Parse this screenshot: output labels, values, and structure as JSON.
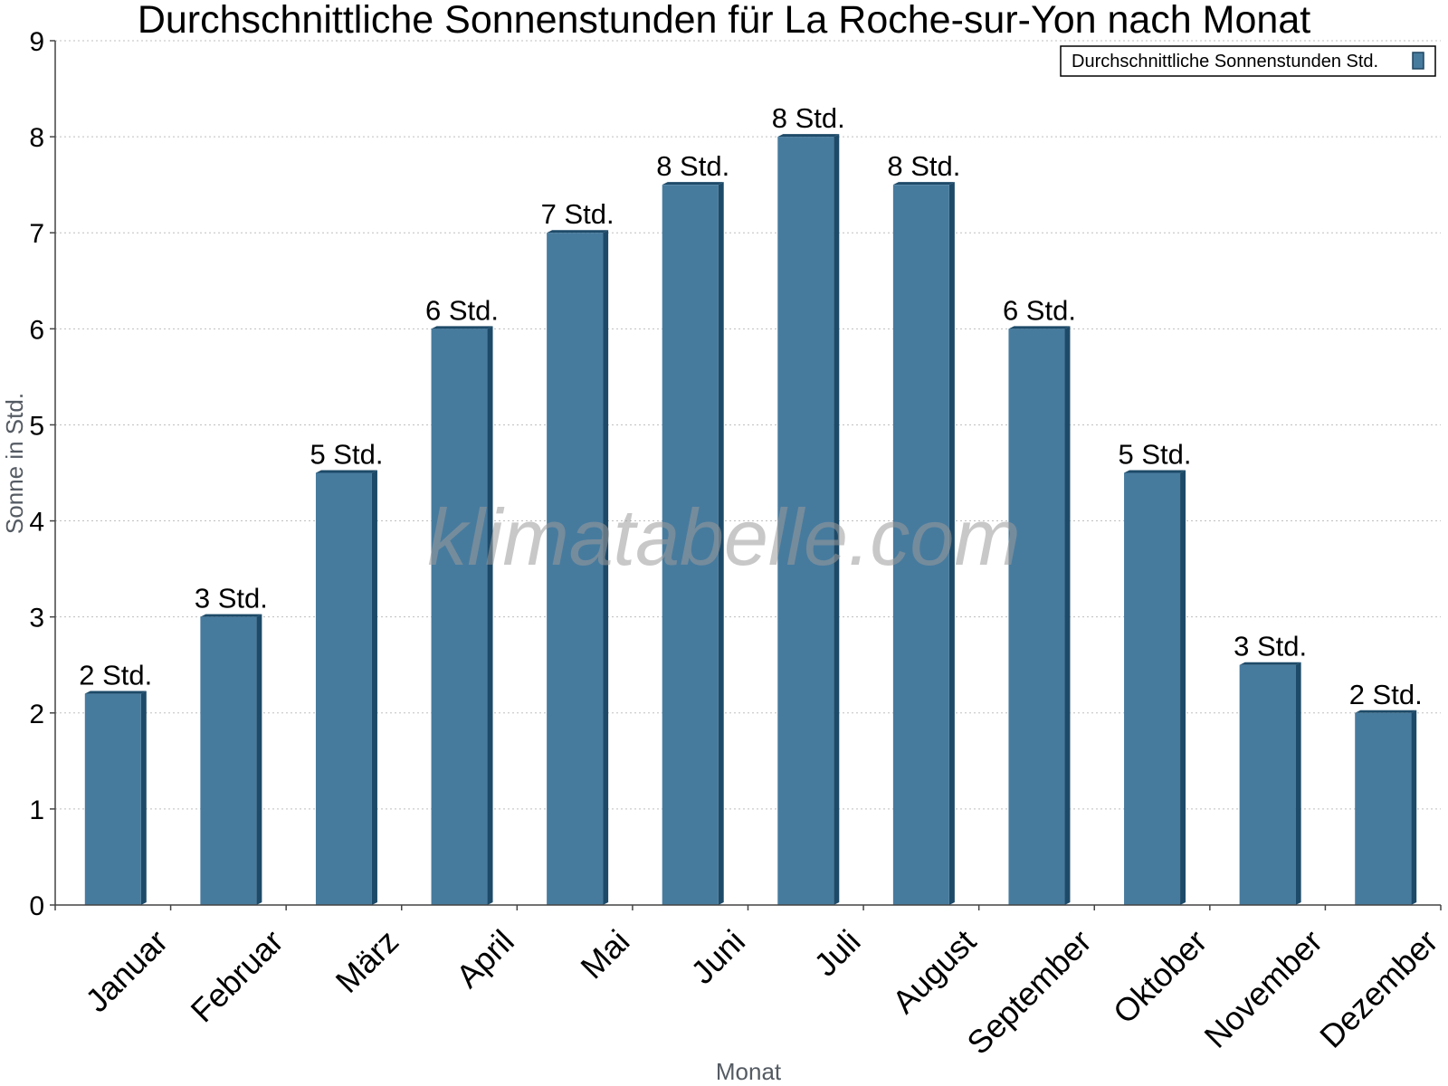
{
  "chart_data": {
    "type": "bar",
    "title": "Durchschnittliche Sonnenstunden für La Roche-sur-Yon nach Monat",
    "xlabel": "Monat",
    "ylabel": "Sonne in Std.",
    "ylim": [
      0,
      9
    ],
    "yticks": [
      "0",
      "1",
      "2",
      "3",
      "4",
      "5",
      "6",
      "7",
      "8",
      "9"
    ],
    "grid": true,
    "legend_position": "top-right",
    "categories": [
      "Januar",
      "Februar",
      "März",
      "April",
      "Mai",
      "Juni",
      "Juli",
      "August",
      "September",
      "Oktober",
      "November",
      "Dezember"
    ],
    "series": [
      {
        "name": "Durchschnittliche Sonnenstunden Std.",
        "color": "#477b9e",
        "values": [
          2.2,
          3.0,
          4.5,
          6.0,
          7.0,
          7.5,
          8.0,
          7.5,
          6.0,
          4.5,
          2.5,
          2.0
        ],
        "labels": [
          "2 Std.",
          "3 Std.",
          "5 Std.",
          "6 Std.",
          "7 Std.",
          "8 Std.",
          "8 Std.",
          "8 Std.",
          "6 Std.",
          "5 Std.",
          "3 Std.",
          "2 Std."
        ]
      }
    ],
    "watermark": "klimatabelle.com"
  }
}
